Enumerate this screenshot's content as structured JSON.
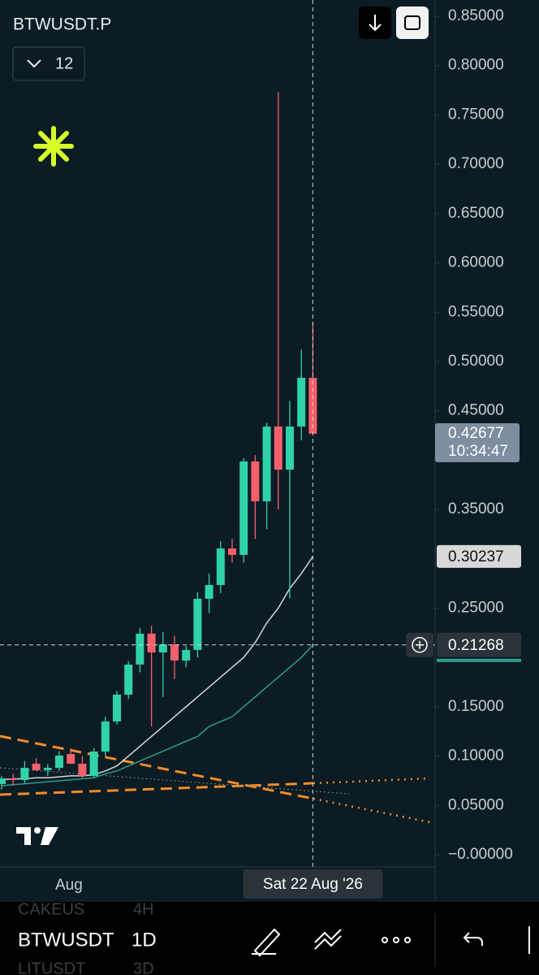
{
  "header": {
    "symbol": "BTWUSDT.P",
    "indicator_count": "12"
  },
  "chart_data": {
    "type": "candlestick",
    "up_color": "#2fd3a8",
    "down_color": "#f4606c",
    "open": [
      0.0717,
      0.0774,
      0.0758,
      0.0923,
      0.0857,
      0.0881,
      0.1021,
      0.0923,
      0.0799,
      0.1046,
      0.1351,
      0.1623,
      0.1928,
      0.2241,
      0.2051,
      0.2133,
      0.1969,
      0.2076,
      0.2595,
      0.2735,
      0.3105,
      0.304,
      0.3987,
      0.3583,
      0.4341,
      0.3904,
      0.4341,
      0.4835
    ],
    "high": [
      0.08,
      0.082,
      0.095,
      0.098,
      0.092,
      0.105,
      0.108,
      0.1,
      0.108,
      0.14,
      0.166,
      0.196,
      0.23,
      0.232,
      0.226,
      0.222,
      0.212,
      0.266,
      0.285,
      0.318,
      0.32,
      0.402,
      0.405,
      0.438,
      0.773,
      0.46,
      0.512,
      0.54
    ],
    "low": [
      0.066,
      0.07,
      0.072,
      0.085,
      0.08,
      0.085,
      0.092,
      0.078,
      0.078,
      0.1,
      0.132,
      0.158,
      0.185,
      0.13,
      0.16,
      0.178,
      0.19,
      0.2,
      0.245,
      0.265,
      0.296,
      0.296,
      0.32,
      0.33,
      0.35,
      0.26,
      0.42,
      0.43
    ],
    "close": [
      0.0774,
      0.0758,
      0.0881,
      0.0857,
      0.0881,
      0.1005,
      0.0923,
      0.0799,
      0.1046,
      0.1351,
      0.1623,
      0.1928,
      0.2241,
      0.2051,
      0.2133,
      0.1969,
      0.2076,
      0.2595,
      0.2735,
      0.3105,
      0.304,
      0.3987,
      0.3583,
      0.4341,
      0.3904,
      0.4341,
      0.4835,
      0.42677
    ],
    "series": [
      {
        "color": "#d8d8d8",
        "values": [
          0.076,
          0.077,
          0.077,
          0.078,
          0.078,
          0.079,
          0.08,
          0.08,
          0.081,
          0.085,
          0.09,
          0.1,
          0.11,
          0.12,
          0.13,
          0.14,
          0.15,
          0.16,
          0.17,
          0.18,
          0.19,
          0.2,
          0.215,
          0.235,
          0.25,
          0.27,
          0.285,
          0.30237
        ]
      },
      {
        "color": "#2a9d8f",
        "values": [
          0.07,
          0.071,
          0.072,
          0.073,
          0.074,
          0.075,
          0.076,
          0.077,
          0.078,
          0.082,
          0.085,
          0.09,
          0.095,
          0.1,
          0.105,
          0.11,
          0.115,
          0.12,
          0.13,
          0.135,
          0.14,
          0.15,
          0.16,
          0.17,
          0.18,
          0.19,
          0.2,
          0.21268
        ]
      }
    ],
    "ylim": [
      0,
      0.85
    ],
    "yticks": [
      {
        "value": 0.85,
        "label": "0.85000"
      },
      {
        "value": 0.8,
        "label": "0.80000"
      },
      {
        "value": 0.75,
        "label": "0.75000"
      },
      {
        "value": 0.7,
        "label": "0.70000"
      },
      {
        "value": 0.65,
        "label": "0.65000"
      },
      {
        "value": 0.6,
        "label": "0.60000"
      },
      {
        "value": 0.55,
        "label": "0.55000"
      },
      {
        "value": 0.5,
        "label": "0.50000"
      },
      {
        "value": 0.45,
        "label": "0.45000"
      },
      {
        "value": 0.35,
        "label": "0.35000"
      },
      {
        "value": 0.25,
        "label": "0.25000"
      },
      {
        "value": 0.15,
        "label": "0.15000"
      },
      {
        "value": 0.1,
        "label": "0.10000"
      },
      {
        "value": 0.05,
        "label": "0.05000"
      },
      {
        "value": 0,
        "label": "−0.00000"
      }
    ],
    "x_label": "Aug",
    "last_price": 0.42677,
    "countdown": "10:34:47",
    "ma_price": 0.30237,
    "crosshair_price": 0.21268,
    "crosshair_date": "Sat 22 Aug '26"
  },
  "toolbar": {
    "symbol": "BTWUSDT",
    "interval": "1D",
    "faded_symbol_top": "CAKEUS",
    "faded_interval_top": "4H",
    "faded_symbol_bottom": "LITUSDT",
    "faded_interval_bottom": "3D"
  }
}
